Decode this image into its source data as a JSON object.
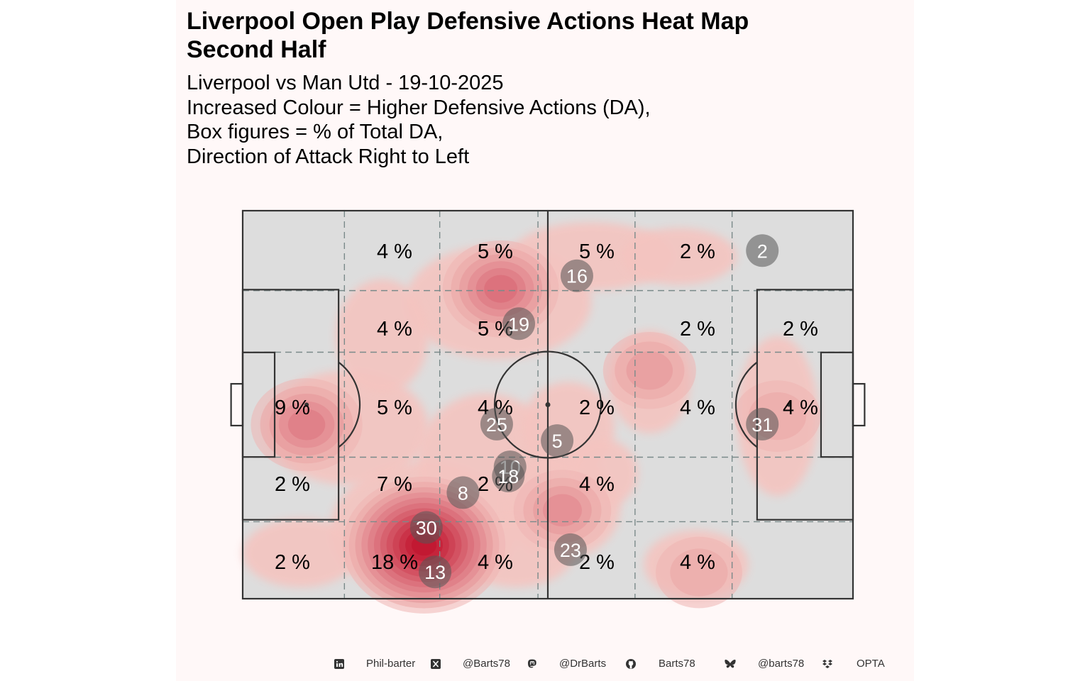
{
  "colors": {
    "background": "#fff8f8",
    "pitch_fill": "#dddddd",
    "pitch_lines": "#333333",
    "zone_lines": "#7a8a8a",
    "density_light": "#f4c4c0",
    "density_dark": "#c0102c",
    "player_marker": "#555555"
  },
  "title": {
    "line1": "Liverpool Open Play Defensive Actions Heat Map",
    "line2": "Second Half"
  },
  "subtitle": {
    "line1": "Liverpool vs Man Utd - 19-10-2025",
    "line2": "Increased Colour = Higher Defensive Actions (DA),",
    "line3": "Box figures = % of Total DA,",
    "line4": "Direction of Attack Right to Left"
  },
  "chart_data": {
    "type": "heatmap",
    "pitch": {
      "length": 105,
      "width": 68,
      "x_bins": 6,
      "y_bins": 5
    },
    "zone_percentages": [
      [
        "",
        "4 %",
        "5 %",
        "5 %",
        "2 %",
        ""
      ],
      [
        "",
        "4 %",
        "5 %",
        "",
        "2 %",
        "2 %"
      ],
      [
        "9 %",
        "5 %",
        "4 %",
        "2 %",
        "4 %",
        "4 %"
      ],
      [
        "2 %",
        "7 %",
        "2 %",
        "4 %",
        "",
        ""
      ],
      [
        "2 %",
        "18 %",
        "4 %",
        "2 %",
        "4 %",
        ""
      ]
    ],
    "players": [
      {
        "number": "2",
        "x": 89.4,
        "y": 61.0
      },
      {
        "number": "16",
        "x": 57.5,
        "y": 56.6
      },
      {
        "number": "19",
        "x": 47.5,
        "y": 48.2
      },
      {
        "number": "25",
        "x": 43.7,
        "y": 30.6
      },
      {
        "number": "5",
        "x": 54.1,
        "y": 27.7
      },
      {
        "number": "31",
        "x": 89.4,
        "y": 30.6
      },
      {
        "number": "10",
        "x": 46.0,
        "y": 23.1
      },
      {
        "number": "18",
        "x": 45.7,
        "y": 21.5
      },
      {
        "number": "8",
        "x": 37.9,
        "y": 18.6
      },
      {
        "number": "30",
        "x": 31.6,
        "y": 12.5
      },
      {
        "number": "23",
        "x": 56.4,
        "y": 8.6
      },
      {
        "number": "13",
        "x": 33.1,
        "y": 4.7
      }
    ],
    "density_hotspots": [
      {
        "x": 31.2,
        "y": 9.4,
        "intensity": 1.0
      },
      {
        "x": 44.4,
        "y": 54.3,
        "intensity": 0.5
      },
      {
        "x": 11.0,
        "y": 30.5,
        "intensity": 0.45
      },
      {
        "x": 55.0,
        "y": 15.5,
        "intensity": 0.3
      },
      {
        "x": 70.0,
        "y": 40.0,
        "intensity": 0.25
      },
      {
        "x": 78.5,
        "y": 4.6,
        "intensity": 0.18
      },
      {
        "x": 92.0,
        "y": 32.0,
        "intensity": 0.18
      }
    ]
  },
  "footer": {
    "items": [
      {
        "icon": "linkedin-icon",
        "label": "Phil-barter"
      },
      {
        "icon": "x-twitter-icon",
        "label": "@Barts78"
      },
      {
        "icon": "mastodon-icon",
        "label": "@DrBarts"
      },
      {
        "icon": "github-icon",
        "label": "Barts78"
      },
      {
        "icon": "bluesky-icon",
        "label": "@barts78"
      },
      {
        "icon": "dropbox-icon",
        "label": "OPTA"
      }
    ]
  }
}
